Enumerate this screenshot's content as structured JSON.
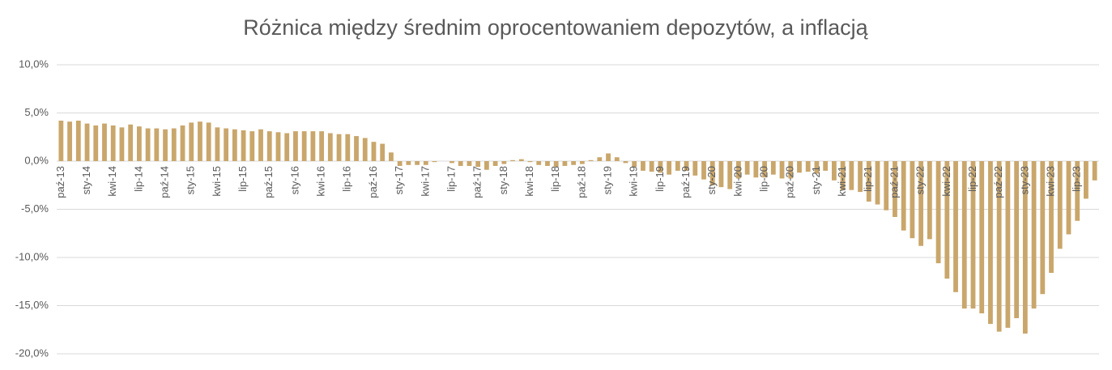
{
  "chart_data": {
    "type": "bar",
    "title": "Różnica między średnim oprocentowaniem depozytów, a inflacją",
    "color": "#c9a66b",
    "grid": true,
    "ylim": [
      -20,
      10
    ],
    "yticks": [
      {
        "value": -20,
        "label": "-20,0%"
      },
      {
        "value": -15,
        "label": "-15,0%"
      },
      {
        "value": -10,
        "label": "-10,0%"
      },
      {
        "value": -5,
        "label": "-5,0%"
      },
      {
        "value": 0,
        "label": "0,0%"
      },
      {
        "value": 5,
        "label": "5,0%"
      },
      {
        "value": 10,
        "label": "10,0%"
      }
    ],
    "categories": [
      "paź-13",
      null,
      null,
      "sty-14",
      null,
      null,
      "kwi-14",
      null,
      null,
      "lip-14",
      null,
      null,
      "paź-14",
      null,
      null,
      "sty-15",
      null,
      null,
      "kwi-15",
      null,
      null,
      "lip-15",
      null,
      null,
      "paź-15",
      null,
      null,
      "sty-16",
      null,
      null,
      "kwi-16",
      null,
      null,
      "lip-16",
      null,
      null,
      "paź-16",
      null,
      null,
      "sty-17",
      null,
      null,
      "kwi-17",
      null,
      null,
      "lip-17",
      null,
      null,
      "paź-17",
      null,
      null,
      "sty-18",
      null,
      null,
      "kwi-18",
      null,
      null,
      "lip-18",
      null,
      null,
      "paź-18",
      null,
      null,
      "sty-19",
      null,
      null,
      "kwi-19",
      null,
      null,
      "lip-19",
      null,
      null,
      "paź-19",
      null,
      null,
      "sty-20",
      null,
      null,
      "kwi-20",
      null,
      null,
      "lip-20",
      null,
      null,
      "paź-20",
      null,
      null,
      "sty-21",
      null,
      null,
      "kwi-21",
      null,
      null,
      "lip-21",
      null,
      null,
      "paź-21",
      null,
      null,
      "sty-22",
      null,
      null,
      "kwi-22",
      null,
      null,
      "lip-22",
      null,
      null,
      "paź-22",
      null,
      null,
      "sty-23",
      null,
      null,
      "kwi-23",
      null,
      null,
      "lip-23",
      null,
      null
    ],
    "values": [
      4.2,
      4.1,
      4.2,
      3.9,
      3.7,
      3.9,
      3.7,
      3.5,
      3.8,
      3.6,
      3.4,
      3.4,
      3.3,
      3.4,
      3.7,
      4.0,
      4.1,
      4.0,
      3.5,
      3.4,
      3.3,
      3.2,
      3.1,
      3.3,
      3.1,
      3.0,
      2.9,
      3.1,
      3.1,
      3.1,
      3.1,
      2.9,
      2.8,
      2.8,
      2.6,
      2.4,
      2.0,
      1.8,
      0.9,
      -0.5,
      -0.4,
      -0.4,
      -0.4,
      -0.1,
      0.0,
      -0.2,
      -0.5,
      -0.5,
      -0.6,
      -0.9,
      -0.5,
      -0.3,
      0.1,
      0.2,
      -0.1,
      -0.4,
      -0.5,
      -0.6,
      -0.5,
      -0.4,
      -0.3,
      0.1,
      0.4,
      0.8,
      0.4,
      -0.2,
      -0.6,
      -1.0,
      -1.1,
      -1.2,
      -1.4,
      -1.0,
      -1.0,
      -1.5,
      -1.9,
      -2.5,
      -2.7,
      -2.9,
      -1.8,
      -1.4,
      -1.7,
      -1.7,
      -1.4,
      -1.8,
      -1.8,
      -1.2,
      -1.1,
      -1.3,
      -1.0,
      -2.0,
      -3.0,
      -3.0,
      -3.2,
      -4.2,
      -4.5,
      -5.1,
      -5.8,
      -7.2,
      -8.0,
      -8.8,
      -8.1,
      -10.6,
      -12.2,
      -13.6,
      -15.3,
      -15.3,
      -15.8,
      -16.9,
      -17.7,
      -17.3,
      -16.3,
      -17.9,
      -15.3,
      -13.8,
      -11.6,
      -9.1,
      -7.6,
      -6.2,
      -3.9,
      -2.0
    ]
  }
}
